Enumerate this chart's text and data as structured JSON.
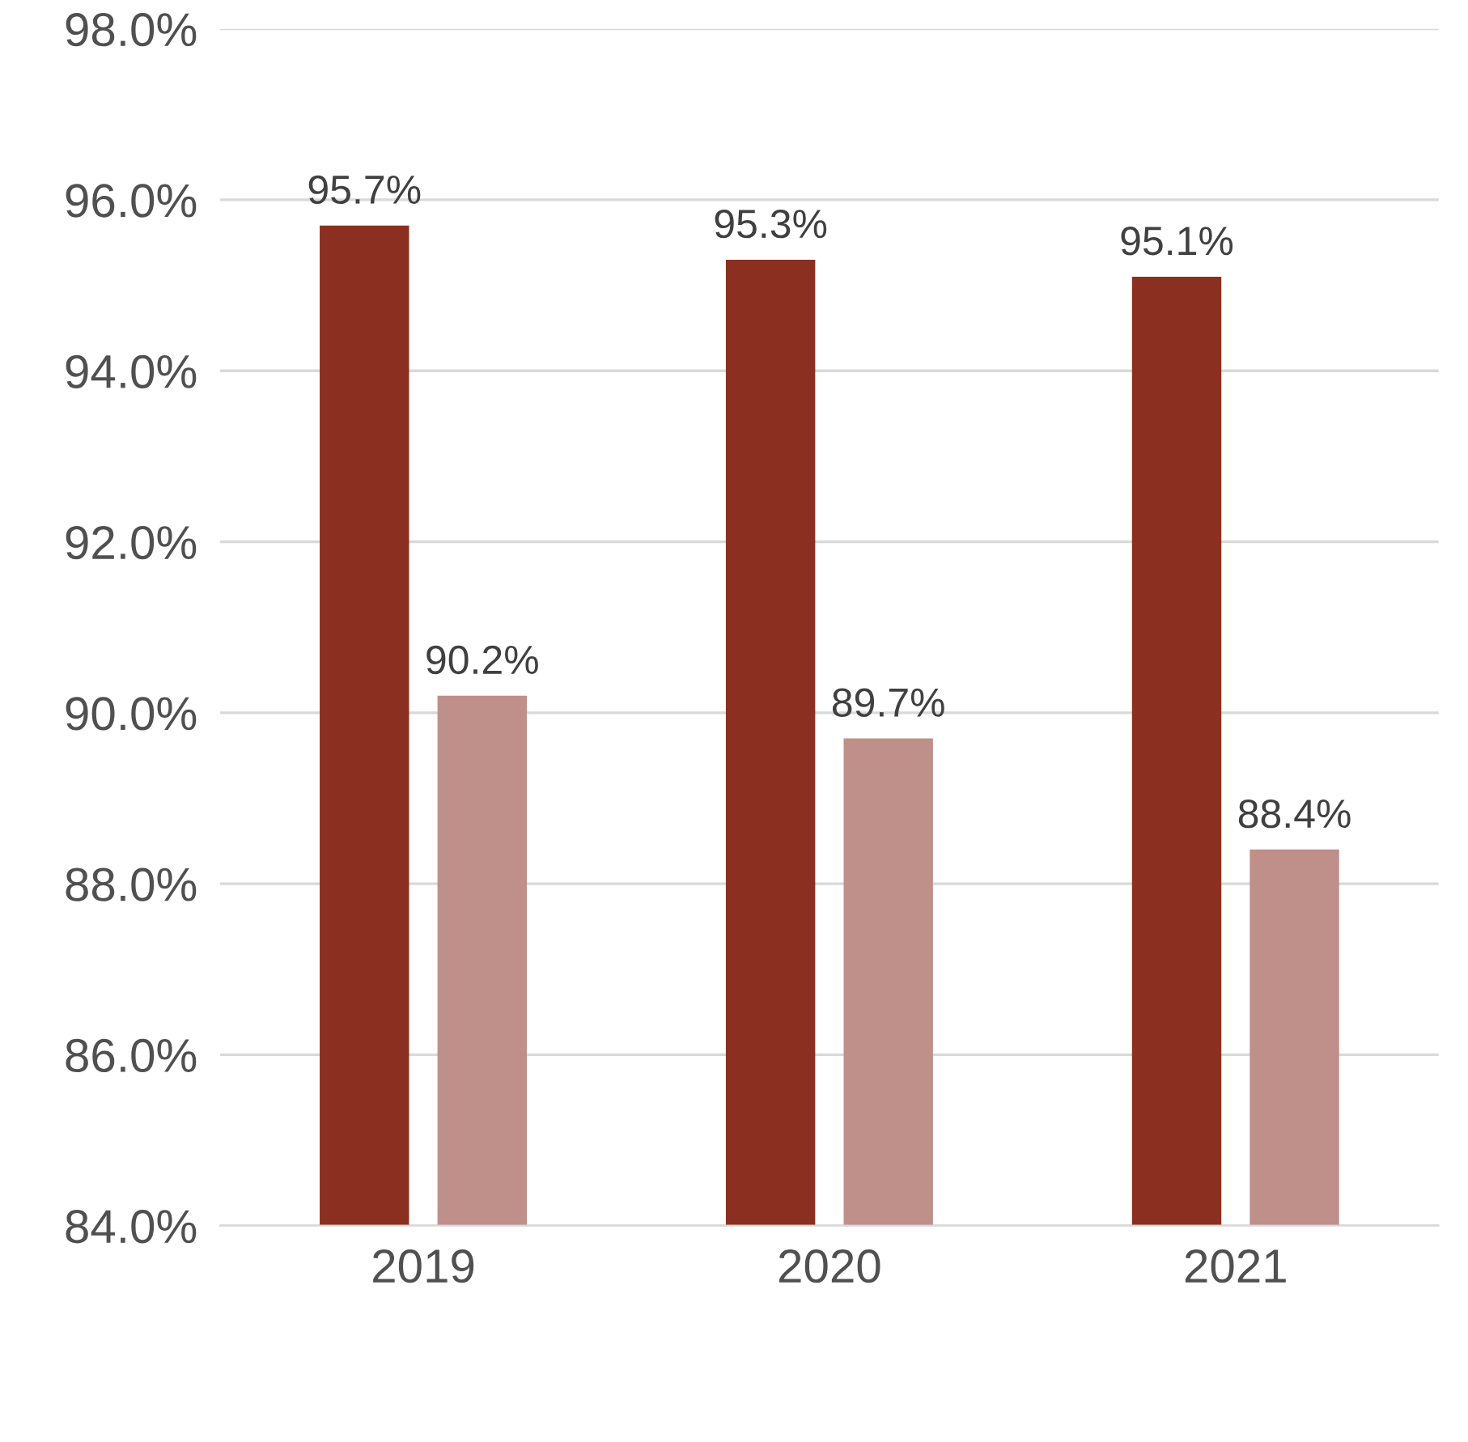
{
  "chart_data": {
    "type": "bar",
    "categories": [
      "2019",
      "2020",
      "2021"
    ],
    "series": [
      {
        "color": "#8b3020",
        "values": [
          95.7,
          95.3,
          95.1
        ],
        "value_labels": [
          "95.7%",
          "95.3%",
          "95.1%"
        ]
      },
      {
        "color": "#bf8f8a",
        "values": [
          90.2,
          89.7,
          88.4
        ],
        "value_labels": [
          "90.2%",
          "89.7%",
          "88.4%"
        ]
      }
    ],
    "ylim": [
      84,
      98
    ],
    "yticks": [
      {
        "value": 84,
        "label": "84.0%"
      },
      {
        "value": 86,
        "label": "86.0%"
      },
      {
        "value": 88,
        "label": "88.0%"
      },
      {
        "value": 90,
        "label": "90.0%"
      },
      {
        "value": 92,
        "label": "92.0%"
      },
      {
        "value": 94,
        "label": "94.0%"
      },
      {
        "value": 96,
        "label": "96.0%"
      },
      {
        "value": 98,
        "label": "98.0%"
      }
    ],
    "grid": "y"
  }
}
